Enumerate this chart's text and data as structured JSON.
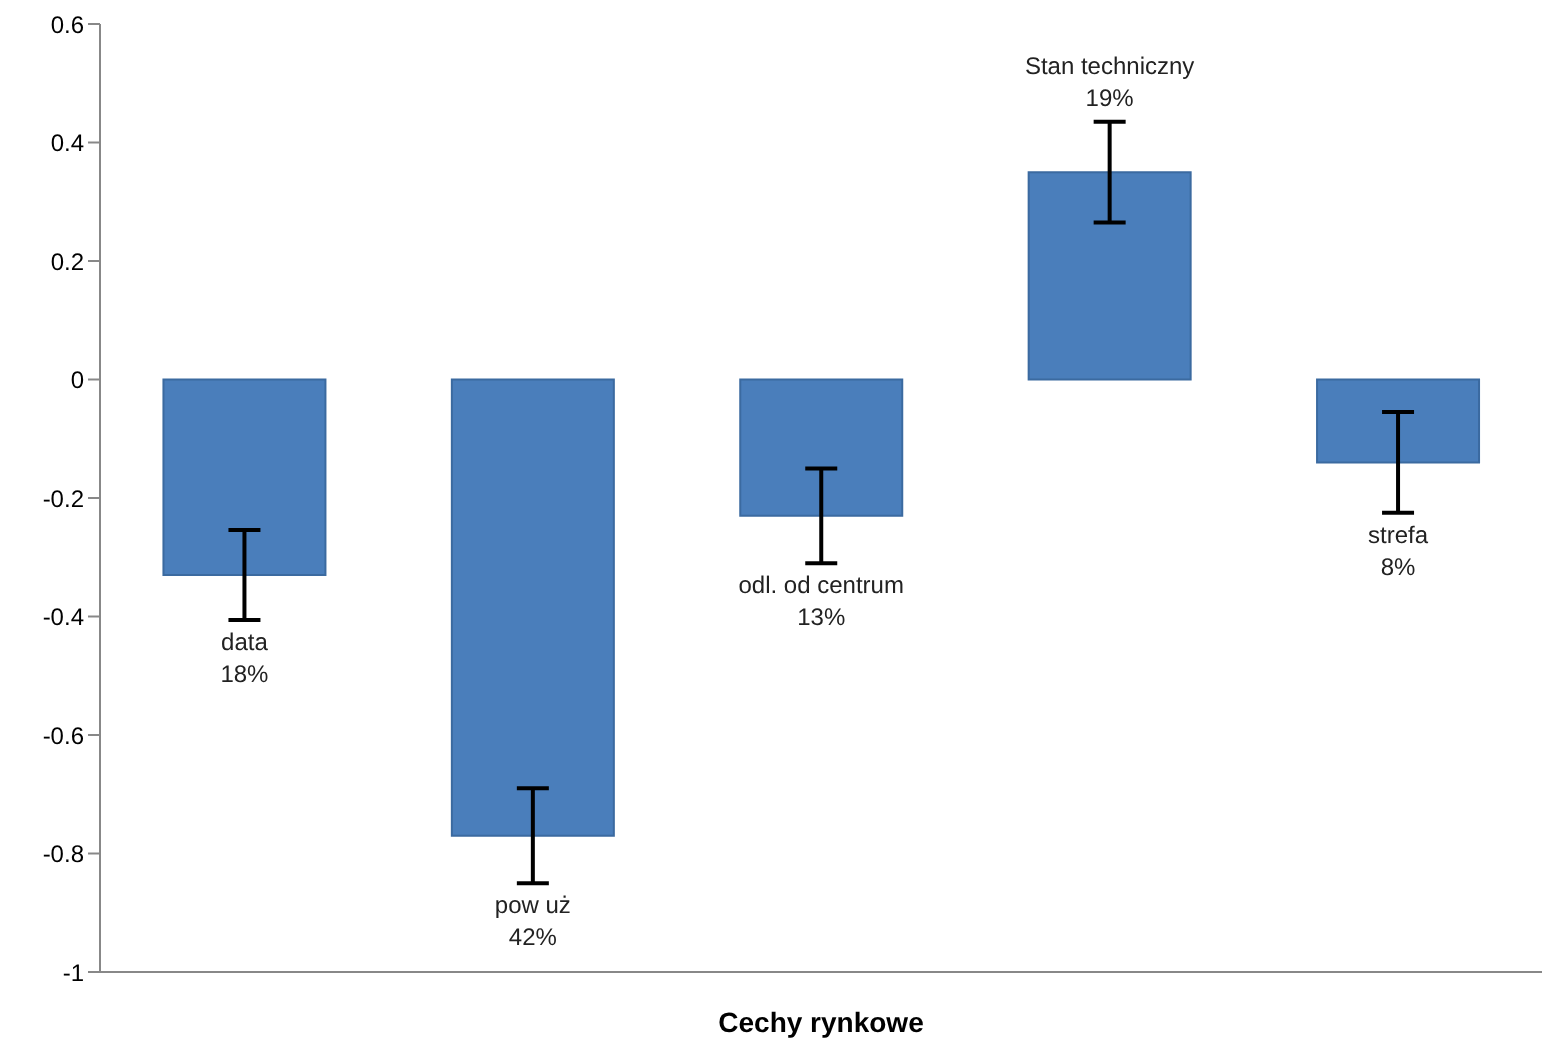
{
  "chart_data": {
    "type": "bar",
    "xlabel": "Cechy rynkowe",
    "categories": [
      null,
      null,
      null,
      null,
      null
    ],
    "values": [
      -0.33,
      -0.77,
      -0.23,
      0.35,
      -0.14
    ],
    "errors": [
      0.076,
      0.08,
      0.08,
      0.085,
      0.085
    ],
    "value_labels": [
      "data\n18%",
      "pow uż\n42%",
      "odl. od centrum\n13%",
      "Stan techniczny\n19%",
      "strefa\n8%"
    ],
    "color": "#4a7ebb",
    "ylim": [
      -1,
      0.6
    ],
    "yticks": [
      -1,
      -0.8,
      -0.6,
      -0.4,
      -0.2,
      0,
      0.2,
      0.4,
      0.6
    ],
    "grid": false,
    "legend": false
  }
}
